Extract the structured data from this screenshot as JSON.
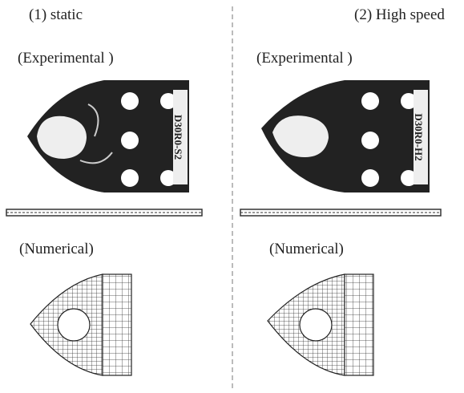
{
  "left": {
    "title": "(1) static",
    "experimental": "(Experimental )",
    "specimen": "D30R0-S2",
    "numerical": "(Numerical)"
  },
  "right": {
    "title": "(2) High speed",
    "experimental": "(Experimental )",
    "specimen": "D30R0-H2",
    "numerical": "(Numerical)"
  }
}
